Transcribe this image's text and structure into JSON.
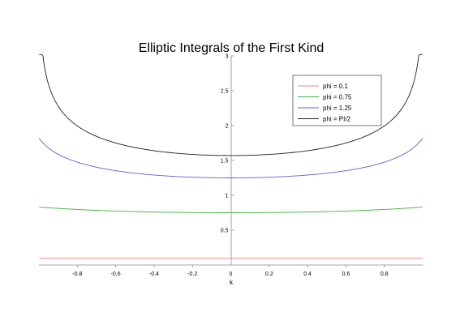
{
  "chart_data": {
    "type": "line",
    "title": "Elliptic Integrals of the First Kind",
    "xlabel": "k",
    "ylabel": "",
    "xlim": [
      -1,
      1
    ],
    "ylim": [
      0,
      3
    ],
    "xticks": [
      "-0.8",
      "-0.6",
      "-0.4",
      "-0.2",
      "0",
      "0.2",
      "0.4",
      "0.6",
      "0.8"
    ],
    "yticks": [
      "0.5",
      "1",
      "1.5",
      "2",
      "2.5",
      "3"
    ],
    "grid": false,
    "legend_position": "top-right",
    "series": [
      {
        "name": "phi = 0.1",
        "color": "#ff8080",
        "phi": 0.1,
        "x": [
          -0.99,
          -0.8,
          -0.6,
          -0.4,
          -0.2,
          0,
          0.2,
          0.4,
          0.6,
          0.8,
          0.99
        ],
        "y": [
          0.1002,
          0.1001,
          0.1001,
          0.1,
          0.1,
          0.1,
          0.1,
          0.1,
          0.1001,
          0.1001,
          0.1002
        ]
      },
      {
        "name": "phi = 0.75",
        "color": "#40b040",
        "phi": 0.75,
        "x": [
          -0.99,
          -0.8,
          -0.6,
          -0.4,
          -0.2,
          0,
          0.2,
          0.4,
          0.6,
          0.8,
          0.99
        ],
        "y": [
          0.837,
          0.801,
          0.775,
          0.76,
          0.752,
          0.75,
          0.752,
          0.76,
          0.775,
          0.801,
          0.837
        ]
      },
      {
        "name": "phi = 1.25",
        "color": "#6060d0",
        "phi": 1.25,
        "x": [
          -0.99,
          -0.8,
          -0.6,
          -0.4,
          -0.2,
          0,
          0.2,
          0.4,
          0.6,
          0.8,
          0.99
        ],
        "y": [
          1.797,
          1.544,
          1.397,
          1.313,
          1.265,
          1.25,
          1.265,
          1.313,
          1.397,
          1.544,
          1.797
        ]
      },
      {
        "name": "phi = PI/2",
        "color": "#202020",
        "phi": 1.5707963,
        "x": [
          -0.99,
          -0.8,
          -0.6,
          -0.4,
          -0.2,
          0,
          0.2,
          0.4,
          0.6,
          0.8,
          0.99
        ],
        "y": [
          3.357,
          1.995,
          1.751,
          1.64,
          1.587,
          1.571,
          1.587,
          1.64,
          1.751,
          1.995,
          3.357
        ]
      }
    ]
  }
}
